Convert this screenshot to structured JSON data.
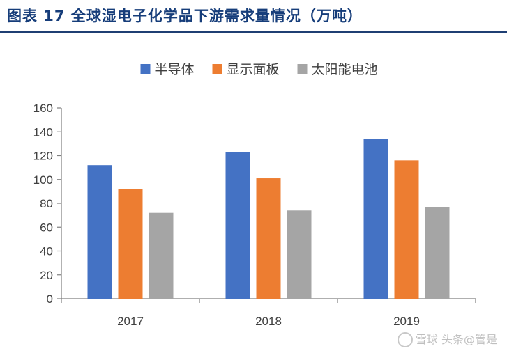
{
  "caption": "图表 17  全球湿电子化学品下游需求量情况（万吨）",
  "watermark": "雪球 头条@管是",
  "colors": {
    "caption": "#163d7a",
    "rule": "#1f3f73",
    "axis": "#7f7f7f"
  },
  "chart_data": {
    "type": "bar",
    "categories": [
      "2017",
      "2018",
      "2019"
    ],
    "series": [
      {
        "name": "半导体",
        "color": "#4472c4",
        "values": [
          112,
          123,
          134
        ]
      },
      {
        "name": "显示面板",
        "color": "#ed7d31",
        "values": [
          92,
          101,
          116
        ]
      },
      {
        "name": "太阳能电池",
        "color": "#a5a5a5",
        "values": [
          72,
          74,
          77
        ]
      }
    ],
    "ylim": [
      0,
      160
    ],
    "yticks": [
      0,
      20,
      40,
      60,
      80,
      100,
      120,
      140,
      160
    ],
    "grid": false,
    "legend_position": "top"
  }
}
